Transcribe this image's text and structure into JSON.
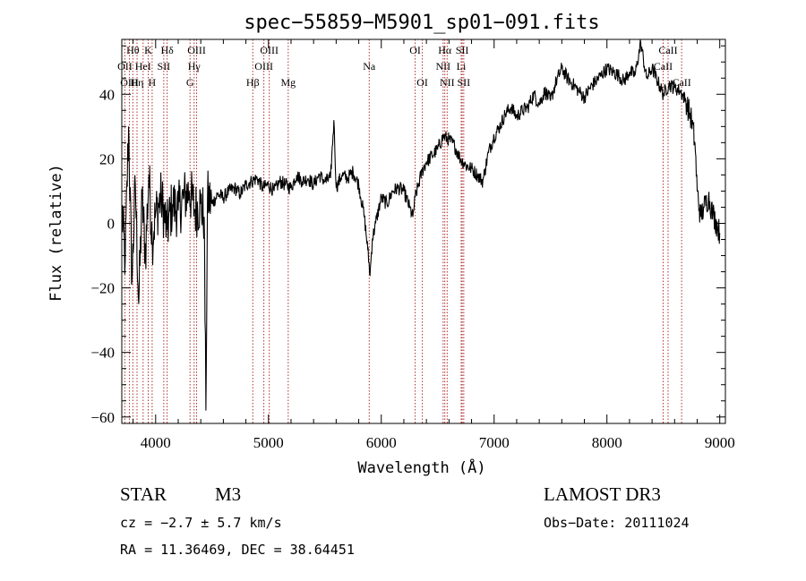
{
  "chart_data": {
    "type": "line",
    "title": "spec−55859−M5901_sp01−091.fits",
    "xlabel": "Wavelength (Å)",
    "ylabel": "Flux (relative)",
    "xlim": [
      3700,
      9050
    ],
    "ylim": [
      -62,
      57
    ],
    "xticks": [
      4000,
      5000,
      6000,
      7000,
      8000,
      9000
    ],
    "xtick_labels": [
      "4000",
      "5000",
      "6000",
      "7000",
      "8000",
      "9000"
    ],
    "yticks": [
      -60,
      -40,
      -20,
      0,
      20,
      40
    ],
    "ytick_labels": [
      "−60",
      "−40",
      "−20",
      "0",
      "20",
      "40"
    ],
    "line_color": "#000000",
    "marker_color": "#b03030",
    "spectral_lines": [
      {
        "label": "Hθ",
        "wavelength": 3798,
        "row": 0
      },
      {
        "label": "OII",
        "wavelength": 3727,
        "row": 1
      },
      {
        "label": "OIII",
        "wavelength": 3768,
        "row": 2
      },
      {
        "label": "K",
        "wavelength": 3934,
        "row": 0
      },
      {
        "label": "HeI",
        "wavelength": 3889,
        "row": 1
      },
      {
        "label": "Hη",
        "wavelength": 3835,
        "row": 2
      },
      {
        "label": "H",
        "wavelength": 3969,
        "row": 2
      },
      {
        "label": "SII",
        "wavelength": 4072,
        "row": 1
      },
      {
        "label": "Hδ",
        "wavelength": 4102,
        "row": 0
      },
      {
        "label": "OIII",
        "wavelength": 4363,
        "row": 0
      },
      {
        "label": "Hγ",
        "wavelength": 4341,
        "row": 1
      },
      {
        "label": "G",
        "wavelength": 4305,
        "row": 2
      },
      {
        "label": "Hβ",
        "wavelength": 4861,
        "row": 2
      },
      {
        "label": "OIII",
        "wavelength": 5007,
        "row": 0
      },
      {
        "label": "OIII",
        "wavelength": 4959,
        "row": 1
      },
      {
        "label": "Mg",
        "wavelength": 5175,
        "row": 2
      },
      {
        "label": "Na",
        "wavelength": 5893,
        "row": 1
      },
      {
        "label": "OI",
        "wavelength": 6300,
        "row": 0
      },
      {
        "label": "OI",
        "wavelength": 6364,
        "row": 2
      },
      {
        "label": "Hα",
        "wavelength": 6563,
        "row": 0
      },
      {
        "label": "NII",
        "wavelength": 6548,
        "row": 1
      },
      {
        "label": "NII",
        "wavelength": 6584,
        "row": 2
      },
      {
        "label": "SII",
        "wavelength": 6717,
        "row": 0
      },
      {
        "label": "Li",
        "wavelength": 6708,
        "row": 1
      },
      {
        "label": "SII",
        "wavelength": 6731,
        "row": 2
      },
      {
        "label": "CaII",
        "wavelength": 8542,
        "row": 0
      },
      {
        "label": "CaII",
        "wavelength": 8498,
        "row": 1
      },
      {
        "label": "CaII",
        "wavelength": 8662,
        "row": 2
      }
    ],
    "series": [
      {
        "name": "flux",
        "x": [
          3700,
          3730,
          3760,
          3790,
          3820,
          3850,
          3880,
          3910,
          3940,
          3970,
          4000,
          4050,
          4100,
          4150,
          4200,
          4250,
          4300,
          4350,
          4400,
          4430,
          4445,
          4460,
          4500,
          4550,
          4600,
          4650,
          4700,
          4750,
          4800,
          4850,
          4900,
          4950,
          5000,
          5050,
          5100,
          5150,
          5200,
          5250,
          5300,
          5350,
          5400,
          5450,
          5500,
          5550,
          5580,
          5600,
          5650,
          5700,
          5750,
          5800,
          5850,
          5880,
          5900,
          5920,
          5950,
          6000,
          6050,
          6100,
          6150,
          6200,
          6250,
          6280,
          6300,
          6330,
          6360,
          6400,
          6450,
          6500,
          6550,
          6600,
          6650,
          6700,
          6750,
          6800,
          6850,
          6900,
          6950,
          7000,
          7050,
          7100,
          7150,
          7200,
          7250,
          7300,
          7350,
          7400,
          7450,
          7500,
          7550,
          7600,
          7650,
          7700,
          7750,
          7800,
          7850,
          7900,
          7950,
          8000,
          8050,
          8100,
          8150,
          8200,
          8250,
          8300,
          8350,
          8400,
          8450,
          8500,
          8550,
          8600,
          8650,
          8700,
          8750,
          8780,
          8800,
          8830,
          8860,
          8900,
          8940,
          8980,
          9000
        ],
        "y": [
          5,
          -12,
          30,
          -18,
          12,
          -25,
          8,
          -10,
          15,
          -5,
          3,
          8,
          -2,
          6,
          4,
          8,
          10,
          4,
          6,
          2,
          -58,
          8,
          6,
          9,
          8,
          10,
          11,
          9,
          12,
          13,
          14,
          11,
          12,
          10,
          13,
          12,
          11,
          15,
          13,
          14,
          12,
          15,
          13,
          14,
          32,
          11,
          15,
          14,
          16,
          12,
          2,
          -8,
          -16,
          -5,
          0,
          8,
          6,
          10,
          11,
          10,
          5,
          2,
          8,
          12,
          16,
          19,
          21,
          23,
          27,
          26,
          24,
          20,
          18,
          17,
          15,
          13,
          22,
          27,
          30,
          34,
          36,
          33,
          35,
          36,
          40,
          37,
          41,
          38,
          44,
          48,
          45,
          43,
          41,
          39,
          42,
          44,
          46,
          48,
          47,
          46,
          44,
          47,
          46,
          56,
          45,
          48,
          44,
          40,
          43,
          42,
          41,
          38,
          32,
          25,
          10,
          2,
          5,
          8,
          3,
          -1,
          -3
        ]
      }
    ]
  },
  "info": {
    "object_class": "STAR",
    "subclass": "M3",
    "redshift": "cz = −2.7 ± 5.7 km/s",
    "coords": "RA =  11.36469, DEC =  38.64451",
    "survey": "LAMOST DR3",
    "obs_date": "Obs−Date: 20111024"
  }
}
